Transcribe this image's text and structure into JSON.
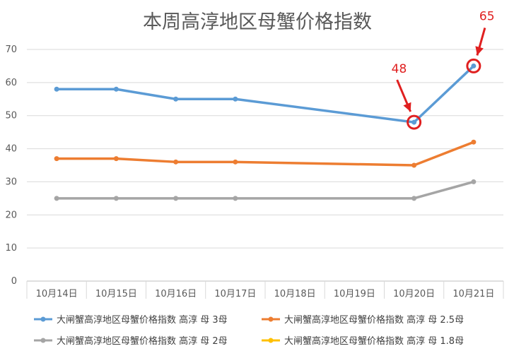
{
  "chart_data": {
    "type": "line",
    "title": "本周高淳地区母蟹价格指数",
    "categories": [
      "10月14日",
      "10月15日",
      "10月16日",
      "10月17日",
      "10月18日",
      "10月19日",
      "10月20日",
      "10月21日"
    ],
    "ylim": [
      0,
      70
    ],
    "yticks": [
      0,
      10,
      20,
      30,
      40,
      50,
      60,
      70
    ],
    "grid": "horizontal",
    "legend_position": "bottom",
    "series": [
      {
        "name": "大闸蟹高淳地区母蟹价格指数 高淳 母 3母",
        "color": "#5b9bd5",
        "points": [
          [
            0,
            58
          ],
          [
            1,
            58
          ],
          [
            2,
            55
          ],
          [
            3,
            55
          ],
          [
            6,
            48
          ],
          [
            7,
            65
          ]
        ]
      },
      {
        "name": "大闸蟹高淳地区母蟹价格指数 高淳 母 2.5母",
        "color": "#ed7d31",
        "points": [
          [
            0,
            37
          ],
          [
            1,
            37
          ],
          [
            2,
            36
          ],
          [
            3,
            36
          ],
          [
            6,
            35
          ],
          [
            7,
            42
          ]
        ]
      },
      {
        "name": "大闸蟹高淳地区母蟹价格指数 高淳 母 2母",
        "color": "#a5a5a5",
        "points": [
          [
            0,
            25
          ],
          [
            1,
            25
          ],
          [
            2,
            25
          ],
          [
            3,
            25
          ],
          [
            6,
            25
          ],
          [
            7,
            30
          ]
        ]
      },
      {
        "name": "大闸蟹高淳地区母蟹价格指数 高淳 母 1.8母",
        "color": "#ffc000",
        "points": []
      }
    ],
    "annotations": [
      {
        "text": "48",
        "series": 0,
        "category_index": 6,
        "value": 48
      },
      {
        "text": "65",
        "series": 0,
        "category_index": 7,
        "value": 65
      }
    ],
    "annotation_color": "#e02020"
  }
}
